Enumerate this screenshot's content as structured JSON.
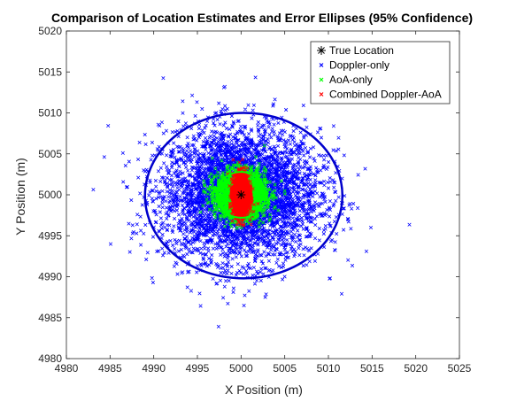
{
  "chart_data": {
    "type": "scatter",
    "title": "Comparison of Location Estimates and Error Ellipses (95% Confidence)",
    "xlabel": "X Position (m)",
    "ylabel": "Y Position (m)",
    "xlim": [
      4980,
      5025
    ],
    "ylim": [
      4980,
      5020
    ],
    "xticks": [
      "4980",
      "4985",
      "4990",
      "4995",
      "5000",
      "5005",
      "5010",
      "5015",
      "5020",
      "5025"
    ],
    "yticks": [
      "4980",
      "4985",
      "4990",
      "4995",
      "5000",
      "5005",
      "5010",
      "5015",
      "5020"
    ],
    "grid": false,
    "legend_position": "top-right",
    "series": [
      {
        "name": "True Location",
        "marker": "asterisk",
        "color": "#000000",
        "center": [
          5000,
          5000
        ],
        "spread": [
          0,
          0
        ],
        "count": 1
      },
      {
        "name": "Doppler-only",
        "marker": "x",
        "color": "#0000ff",
        "center": [
          5000,
          5000
        ],
        "spread": [
          4.5,
          4.0
        ],
        "count": 4500
      },
      {
        "name": "AoA-only",
        "marker": "x",
        "color": "#00ff00",
        "center": [
          5000,
          5000
        ],
        "spread": [
          1.4,
          1.4
        ],
        "count": 2500
      },
      {
        "name": "Combined Doppler-AoA",
        "marker": "x",
        "color": "#ff0000",
        "center": [
          5000,
          5000
        ],
        "spread": [
          0.45,
          1.2
        ],
        "count": 1800
      }
    ],
    "ellipses": [
      {
        "series": "Doppler-only",
        "center": [
          5000.3,
          4999.9
        ],
        "radii": [
          11.3,
          10.1
        ],
        "color": "#0000cc"
      },
      {
        "series": "AoA-only",
        "center": [
          5000,
          5000
        ],
        "radii": [
          2.8,
          2.8
        ],
        "color": "#00ff00"
      },
      {
        "series": "Combined Doppler-AoA",
        "center": [
          5000,
          5000
        ],
        "radii": [
          1.2,
          1.2
        ],
        "color": "#ff0000"
      }
    ]
  }
}
